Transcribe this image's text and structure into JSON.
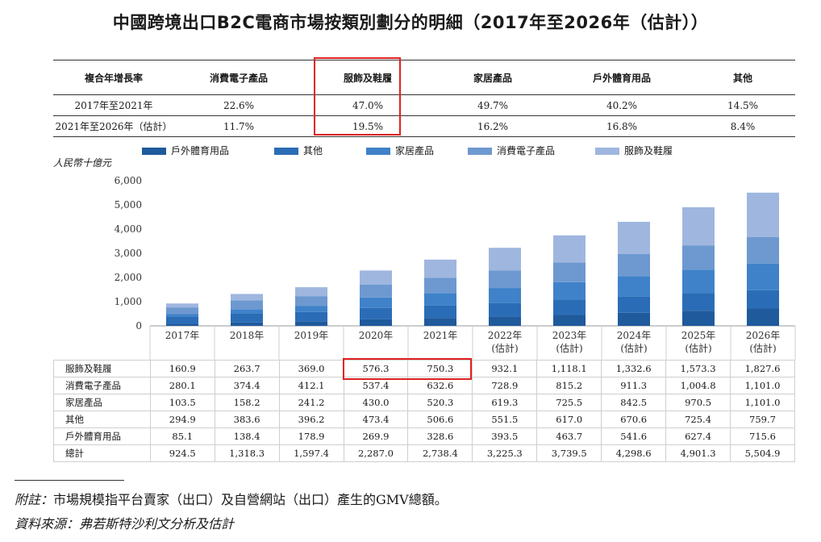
{
  "title": "中國跨境出口B2C電商市場按類別劃分的明細（2017年至2026年（估計））",
  "cagr_table": {
    "headers": [
      "複合年增長率",
      "消費電子產品",
      "服飾及鞋履",
      "家居產品",
      "戶外體育用品",
      "其他"
    ],
    "rows": [
      {
        "label": "2017年至2021年",
        "values": [
          "22.6%",
          "47.0%",
          "49.7%",
          "40.2%",
          "14.5%"
        ]
      },
      {
        "label": "2021年至2026年（估計）",
        "values": [
          "11.7%",
          "19.5%",
          "16.2%",
          "16.8%",
          "8.4%"
        ]
      }
    ]
  },
  "colors": {
    "outdoor": "#1f5a9c",
    "others": "#2a6cb6",
    "home": "#3f82c9",
    "electronics": "#6d99d0",
    "apparel": "#9fb6df",
    "highlight": "#e02020",
    "axis": "#999999"
  },
  "chart_data": {
    "type": "bar",
    "stacked": true,
    "ylabel": "人民幣十億元",
    "ylim": [
      0,
      6000
    ],
    "yticks": [
      "0",
      "1,000",
      "2,000",
      "3,000",
      "4,000",
      "5,000",
      "6,000"
    ],
    "categories": [
      "2017年",
      "2018年",
      "2019年",
      "2020年",
      "2021年",
      "2022年",
      "2023年",
      "2024年",
      "2025年",
      "2026年"
    ],
    "category_notes": [
      "",
      "",
      "",
      "",
      "",
      "(估計)",
      "(估計)",
      "(估計)",
      "(估計)",
      "(估計)"
    ],
    "legend": [
      "戶外體育用品",
      "其他",
      "家居產品",
      "消費電子產品",
      "服飾及鞋履"
    ],
    "legend_position": "top",
    "series": [
      {
        "name": "戶外體育用品",
        "color_key": "outdoor",
        "values": [
          85.1,
          138.4,
          178.9,
          269.9,
          328.6,
          393.5,
          463.7,
          541.6,
          627.4,
          715.6
        ]
      },
      {
        "name": "其他",
        "color_key": "others",
        "values": [
          294.9,
          383.6,
          396.2,
          473.4,
          506.6,
          551.5,
          617.0,
          670.6,
          725.4,
          759.7
        ]
      },
      {
        "name": "家居產品",
        "color_key": "home",
        "values": [
          103.5,
          158.2,
          241.2,
          430.0,
          520.3,
          619.3,
          725.5,
          842.5,
          970.5,
          1101.0
        ]
      },
      {
        "name": "消費電子產品",
        "color_key": "electronics",
        "values": [
          280.1,
          374.4,
          412.1,
          537.4,
          632.6,
          728.9,
          815.2,
          911.3,
          1004.8,
          1101.0
        ]
      },
      {
        "name": "服飾及鞋履",
        "color_key": "apparel",
        "values": [
          160.9,
          263.7,
          369.0,
          576.3,
          750.3,
          932.1,
          1118.1,
          1332.6,
          1573.3,
          1827.6
        ]
      }
    ],
    "totals": [
      924.5,
      1318.3,
      1597.4,
      2287.0,
      2738.4,
      3225.3,
      3739.5,
      4298.6,
      4901.3,
      5504.9
    ]
  },
  "data_table": {
    "rows": [
      {
        "label": "服飾及鞋履",
        "values": [
          "160.9",
          "263.7",
          "369.0",
          "576.3",
          "750.3",
          "932.1",
          "1,118.1",
          "1,332.6",
          "1,573.3",
          "1,827.6"
        ]
      },
      {
        "label": "消費電子產品",
        "values": [
          "280.1",
          "374.4",
          "412.1",
          "537.4",
          "632.6",
          "728.9",
          "815.2",
          "911.3",
          "1,004.8",
          "1,101.0"
        ]
      },
      {
        "label": "家居產品",
        "values": [
          "103.5",
          "158.2",
          "241.2",
          "430.0",
          "520.3",
          "619.3",
          "725.5",
          "842.5",
          "970.5",
          "1,101.0"
        ]
      },
      {
        "label": "其他",
        "values": [
          "294.9",
          "383.6",
          "396.2",
          "473.4",
          "506.6",
          "551.5",
          "617.0",
          "670.6",
          "725.4",
          "759.7"
        ]
      },
      {
        "label": "戶外體育用品",
        "values": [
          "85.1",
          "138.4",
          "178.9",
          "269.9",
          "328.6",
          "393.5",
          "463.7",
          "541.6",
          "627.4",
          "715.6"
        ]
      },
      {
        "label": "總計",
        "values": [
          "924.5",
          "1,318.3",
          "1,597.4",
          "2,287.0",
          "2,738.4",
          "3,225.3",
          "3,739.5",
          "4,298.6",
          "4,901.3",
          "5,504.9"
        ]
      }
    ]
  },
  "notes": {
    "note_label": "附註：",
    "note_text": "市場規模指平台賣家（出口）及自營網站（出口）產生的GMV總額。",
    "source_label": "資料來源：",
    "source_text": "弗若斯特沙利文分析及估計"
  }
}
